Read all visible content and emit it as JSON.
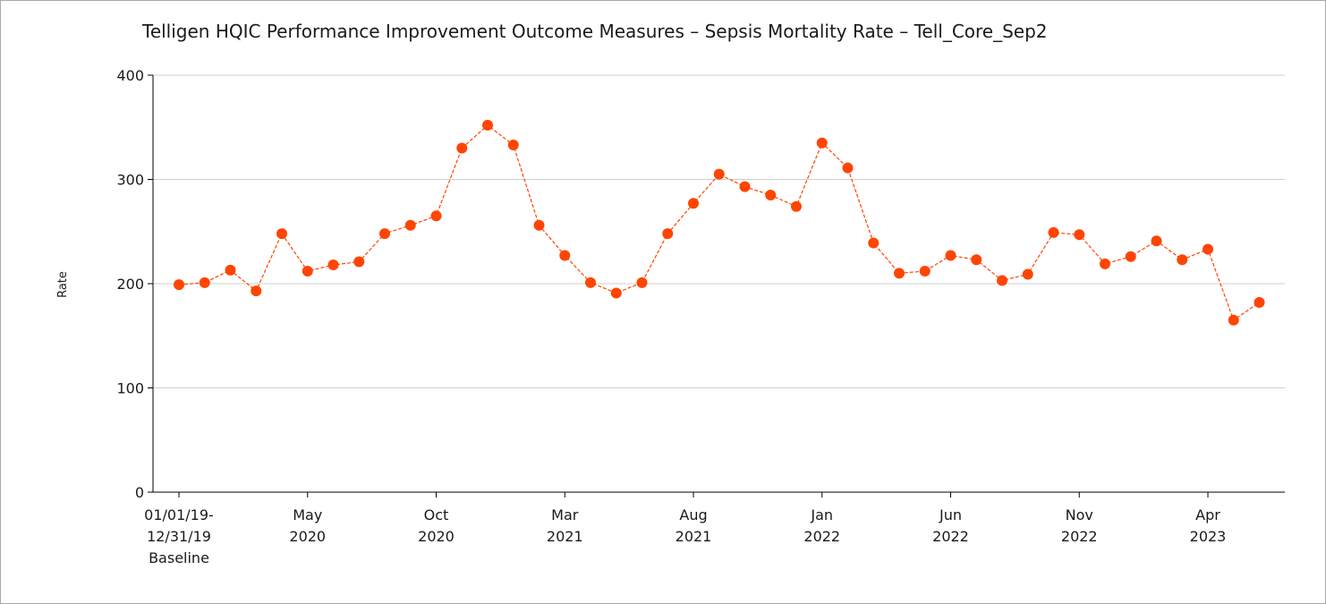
{
  "chart_data": {
    "type": "line",
    "title": "Telligen HQIC Performance Improvement Outcome Measures – Sepsis Mortality Rate – Tell_Core_Sep2",
    "ylabel": "Rate",
    "xlabel": "",
    "ylim": [
      0,
      400
    ],
    "yticks": [
      "0",
      "100",
      "200",
      "300",
      "400"
    ],
    "grid": true,
    "legend": "none",
    "line_color": "#ff4500",
    "x_tick_labels": [
      {
        "index": 0,
        "lines": [
          "01/01/19-",
          "12/31/19",
          "Baseline"
        ]
      },
      {
        "index": 5,
        "lines": [
          "May",
          "2020"
        ]
      },
      {
        "index": 10,
        "lines": [
          "Oct",
          "2020"
        ]
      },
      {
        "index": 15,
        "lines": [
          "Mar",
          "2021"
        ]
      },
      {
        "index": 20,
        "lines": [
          "Aug",
          "2021"
        ]
      },
      {
        "index": 25,
        "lines": [
          "Jan",
          "2022"
        ]
      },
      {
        "index": 30,
        "lines": [
          "Jun",
          "2022"
        ]
      },
      {
        "index": 35,
        "lines": [
          "Nov",
          "2022"
        ]
      },
      {
        "index": 40,
        "lines": [
          "Apr",
          "2023"
        ]
      }
    ],
    "series": [
      {
        "values": [
          199,
          201,
          213,
          193,
          248,
          212,
          218,
          221,
          248,
          256,
          265,
          330,
          352,
          333,
          256,
          227,
          201,
          191,
          201,
          248,
          277,
          305,
          293,
          285,
          274,
          335,
          311,
          239,
          210,
          212,
          227,
          223,
          203,
          209,
          249,
          247,
          219,
          226,
          241,
          223,
          233,
          165,
          182
        ]
      }
    ]
  }
}
